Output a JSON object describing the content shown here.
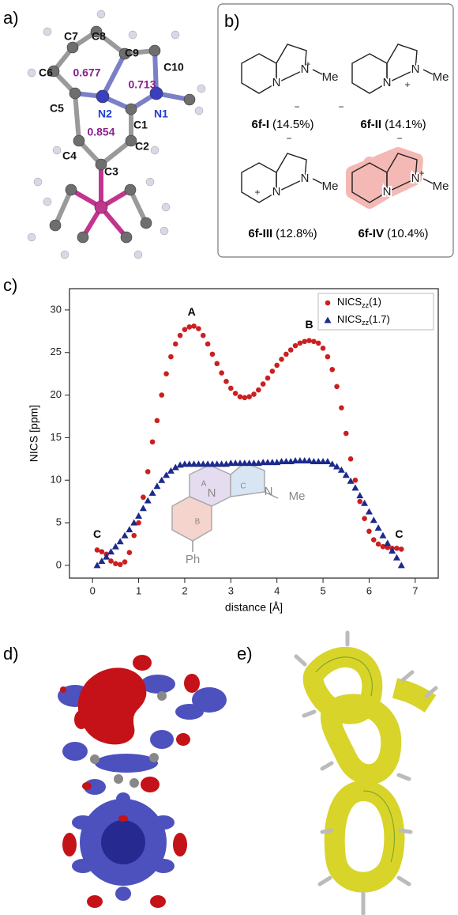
{
  "panels": {
    "a": "a)",
    "b": "b)",
    "c": "c)",
    "d": "d)",
    "e": "e)"
  },
  "crystal_structure": {
    "atoms": [
      "C7",
      "C8",
      "C9",
      "C10",
      "C6",
      "C5",
      "N2",
      "N1",
      "C1",
      "C2",
      "C4",
      "C3"
    ],
    "ring_indices": [
      0.677,
      0.713,
      0.854
    ]
  },
  "resonance_structures": [
    {
      "name": "6f-I",
      "weight": "(14.5%)",
      "symbols": [
        "N",
        "N",
        "+",
        "Me",
        "−"
      ]
    },
    {
      "name": "6f-II",
      "weight": "(14.1%)",
      "symbols": [
        "N",
        "N",
        "+",
        "Me",
        "−"
      ]
    },
    {
      "name": "6f-III",
      "weight": "(12.8%)",
      "symbols": [
        "N",
        "N",
        "+",
        "Me",
        "−"
      ]
    },
    {
      "name": "6f-IV",
      "weight": "(10.4%)",
      "symbols": [
        "N",
        "N",
        "+",
        "Me",
        "−"
      ]
    }
  ],
  "chart_data": {
    "type": "scatter",
    "xlabel": "distance [Å]",
    "ylabel": "NICS [ppm]",
    "xlim": [
      -0.5,
      7.5
    ],
    "ylim": [
      -1.5,
      32.5
    ],
    "xticks": [
      0,
      1,
      2,
      3,
      4,
      5,
      6,
      7
    ],
    "yticks": [
      0,
      5,
      10,
      15,
      20,
      25,
      30
    ],
    "legend": "upper right",
    "annotations": [
      "A",
      "B",
      "C",
      "C"
    ],
    "inset_labels": [
      "A",
      "B",
      "C",
      "N",
      "N",
      "Me",
      "Ph"
    ],
    "x": [
      0.1,
      0.2,
      0.3,
      0.4,
      0.5,
      0.6,
      0.7,
      0.8,
      0.9,
      1.0,
      1.1,
      1.2,
      1.3,
      1.4,
      1.5,
      1.6,
      1.7,
      1.8,
      1.9,
      2.0,
      2.1,
      2.2,
      2.3,
      2.4,
      2.5,
      2.6,
      2.7,
      2.8,
      2.9,
      3.0,
      3.1,
      3.2,
      3.3,
      3.4,
      3.5,
      3.6,
      3.7,
      3.8,
      3.9,
      4.0,
      4.1,
      4.2,
      4.3,
      4.4,
      4.5,
      4.6,
      4.7,
      4.8,
      4.9,
      5.0,
      5.1,
      5.2,
      5.3,
      5.4,
      5.5,
      5.6,
      5.7,
      5.8,
      5.9,
      6.0,
      6.1,
      6.2,
      6.3,
      6.4,
      6.5,
      6.6,
      6.7
    ],
    "series": [
      {
        "name": "NICSzz(1)",
        "color": "#cc1f1f",
        "marker": "circle",
        "values": [
          1.8,
          1.6,
          1.3,
          0.5,
          0.2,
          0.1,
          0.4,
          1.5,
          3.5,
          5.0,
          8.0,
          11.0,
          14.5,
          17.0,
          20.0,
          22.5,
          24.5,
          26.0,
          27.0,
          27.7,
          28.0,
          28.1,
          27.8,
          27.0,
          26.0,
          24.8,
          23.7,
          22.6,
          21.6,
          20.8,
          20.2,
          19.8,
          19.7,
          19.8,
          20.1,
          20.6,
          21.3,
          22.0,
          22.8,
          23.5,
          24.2,
          24.8,
          25.3,
          25.8,
          26.1,
          26.3,
          26.4,
          26.3,
          26.1,
          25.5,
          24.5,
          23.0,
          21.0,
          18.5,
          15.5,
          12.5,
          10.0,
          7.5,
          5.5,
          4.0,
          3.0,
          2.5,
          2.2,
          2.1,
          2.0,
          2.0,
          1.9
        ]
      },
      {
        "name": "NICSzz(1.7)",
        "color": "#1c2a8c",
        "marker": "triangle",
        "values": [
          0.0,
          0.5,
          1.0,
          1.6,
          2.2,
          2.8,
          3.5,
          4.2,
          5.0,
          5.8,
          6.7,
          7.6,
          8.5,
          9.3,
          10.0,
          10.6,
          11.1,
          11.5,
          11.8,
          11.9,
          11.9,
          11.9,
          11.9,
          11.9,
          11.9,
          11.9,
          11.9,
          11.9,
          11.9,
          12.0,
          12.0,
          12.0,
          12.0,
          12.0,
          12.0,
          12.0,
          12.1,
          12.1,
          12.1,
          12.1,
          12.2,
          12.2,
          12.2,
          12.3,
          12.3,
          12.3,
          12.3,
          12.2,
          12.2,
          12.2,
          12.2,
          11.9,
          11.6,
          11.2,
          10.6,
          9.9,
          9.1,
          8.2,
          7.3,
          6.3,
          5.3,
          4.4,
          3.5,
          2.6,
          1.7,
          0.9,
          0.0
        ]
      }
    ]
  }
}
